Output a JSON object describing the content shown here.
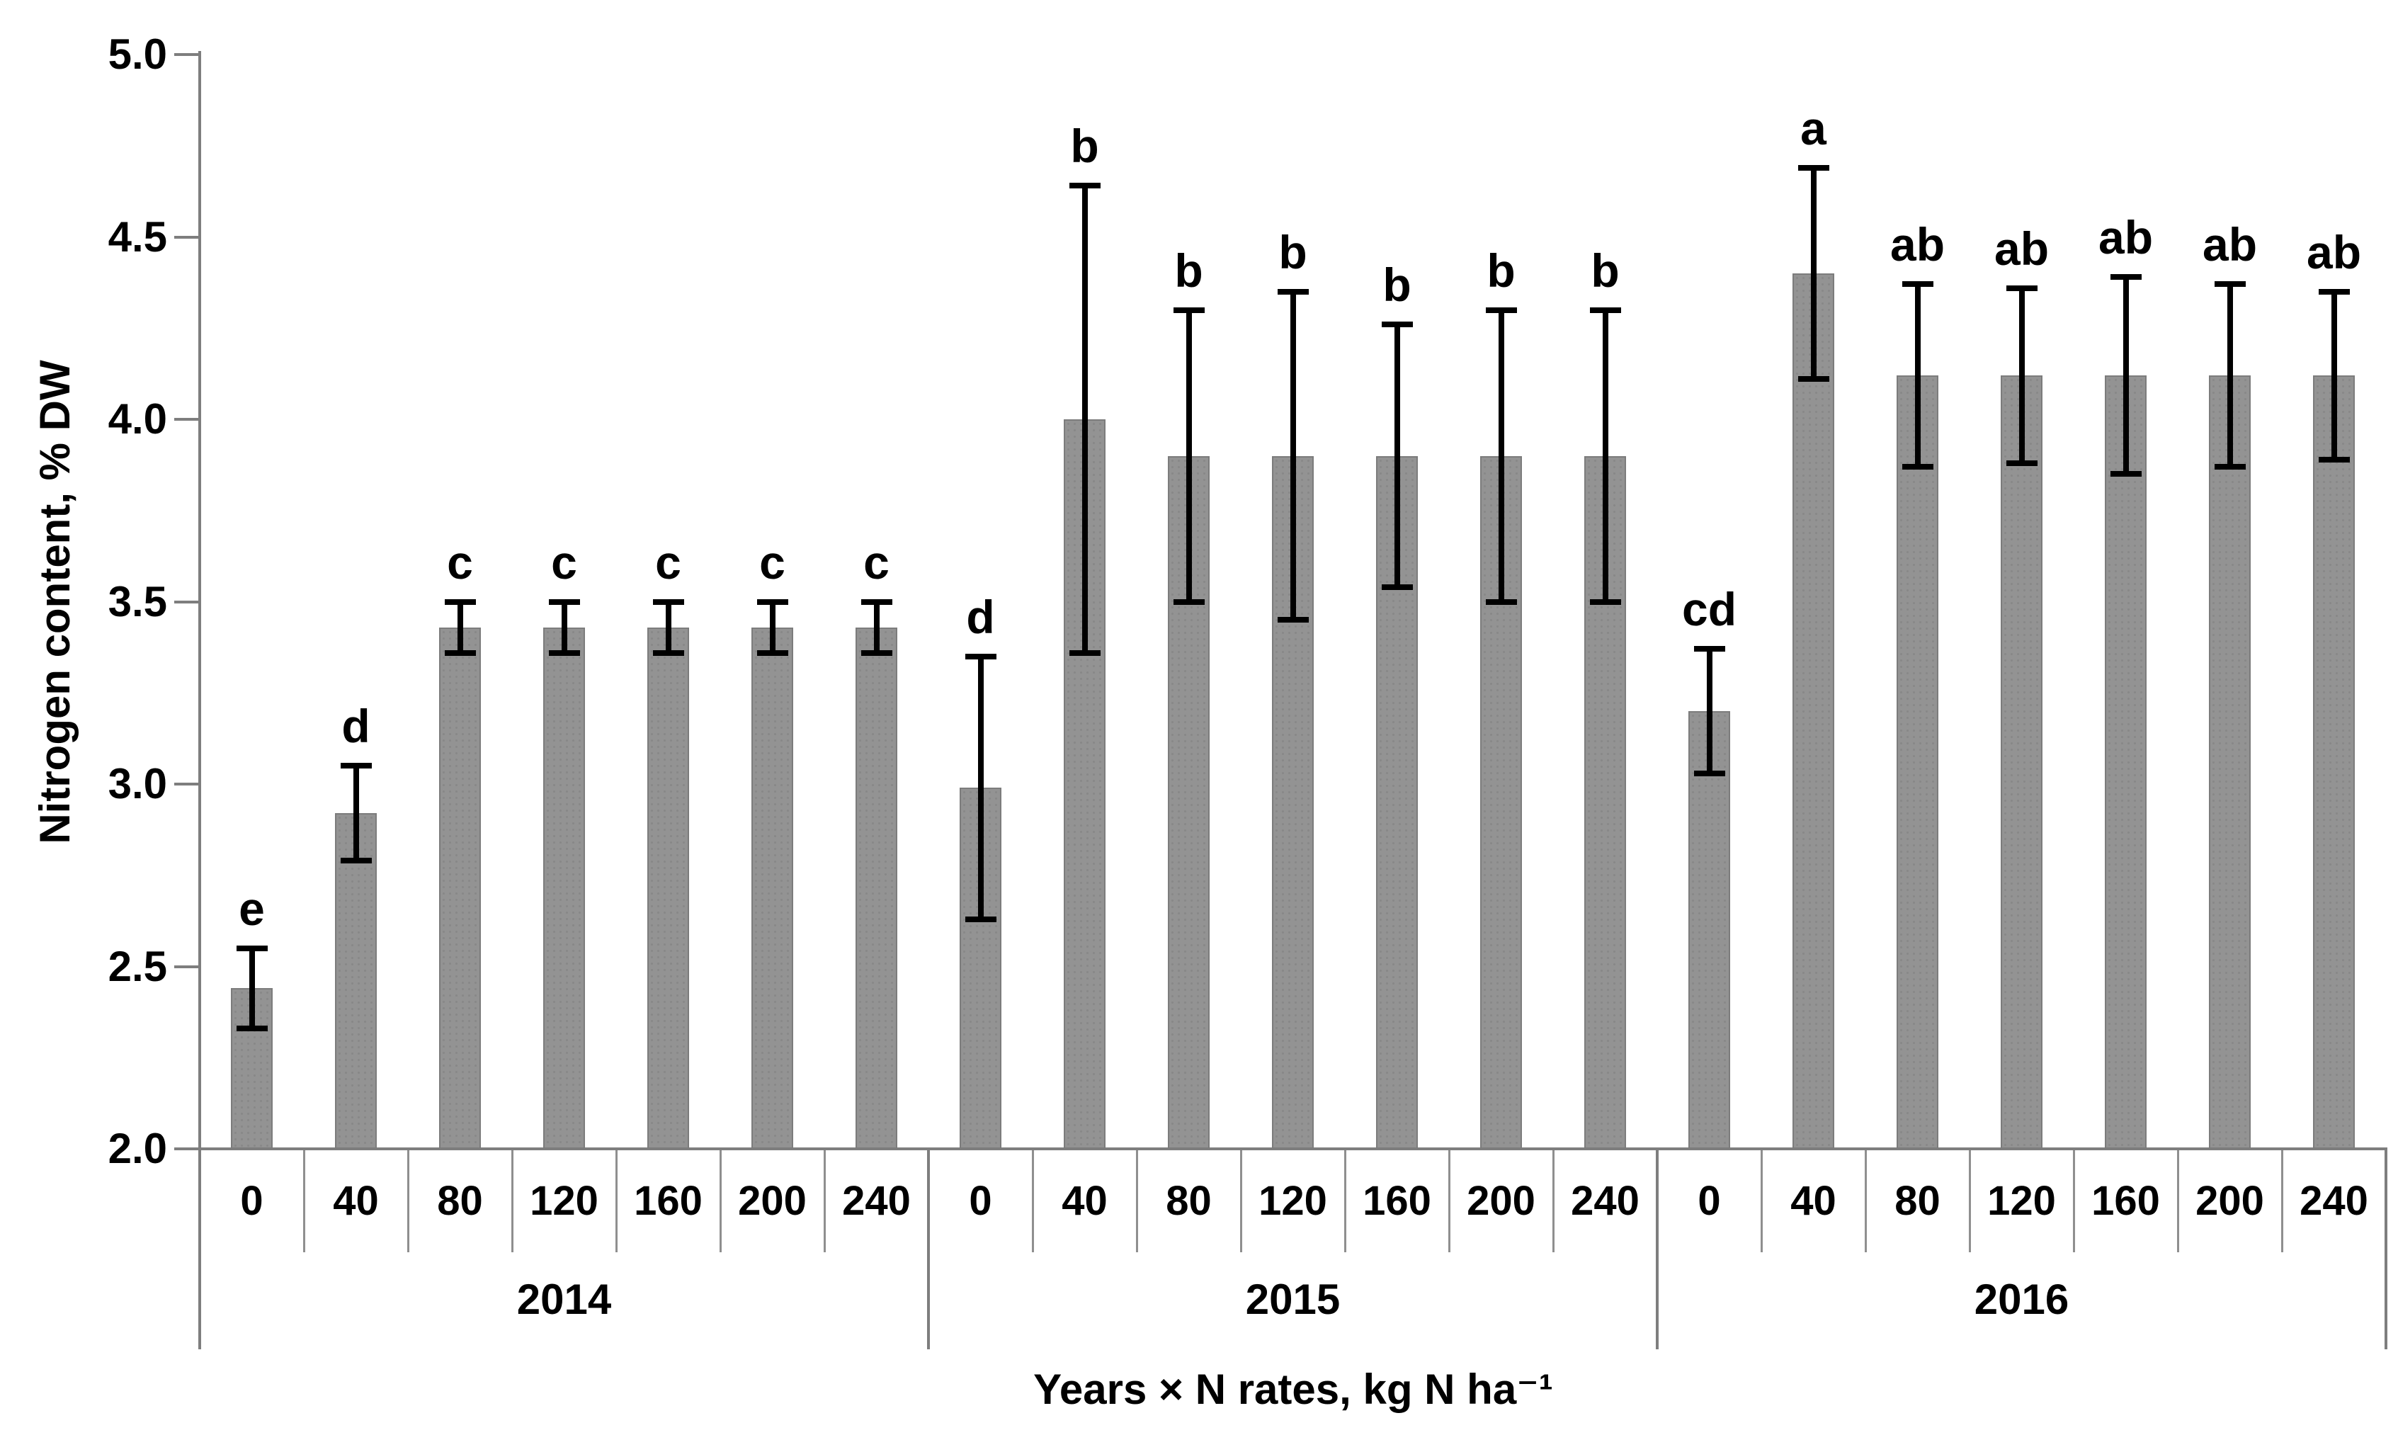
{
  "chart_data": {
    "type": "bar",
    "title": "",
    "ylabel": "Nitrogen content, % DW",
    "xlabel": "Years × N rates, kg N ha⁻¹",
    "ylim": [
      2.0,
      5.0
    ],
    "ytick_step": 0.5,
    "y_tick_labels": [
      "5.0",
      "4.5",
      "4.0",
      "3.5",
      "3.0",
      "2.5",
      "2.0"
    ],
    "grid": false,
    "legend": "none",
    "bar_color": "#939393",
    "bar_border_color": "#7c7c7c",
    "axis_color": "#7e7e7e",
    "error_bar_color": "#000000",
    "text_color": "#000000",
    "categories_per_group": [
      "0",
      "40",
      "80",
      "120",
      "160",
      "200",
      "240"
    ],
    "groups": [
      {
        "label": "2014",
        "bars": [
          {
            "rate": "0",
            "value": 2.44,
            "error": 0.11,
            "letter": "e"
          },
          {
            "rate": "40",
            "value": 2.92,
            "error": 0.13,
            "letter": "d"
          },
          {
            "rate": "80",
            "value": 3.43,
            "error": 0.07,
            "letter": "c"
          },
          {
            "rate": "120",
            "value": 3.43,
            "error": 0.07,
            "letter": "c"
          },
          {
            "rate": "160",
            "value": 3.43,
            "error": 0.07,
            "letter": "c"
          },
          {
            "rate": "200",
            "value": 3.43,
            "error": 0.07,
            "letter": "c"
          },
          {
            "rate": "240",
            "value": 3.43,
            "error": 0.07,
            "letter": "c"
          }
        ]
      },
      {
        "label": "2015",
        "bars": [
          {
            "rate": "0",
            "value": 2.99,
            "error": 0.36,
            "letter": "d"
          },
          {
            "rate": "40",
            "value": 4.0,
            "error": 0.64,
            "letter": "b"
          },
          {
            "rate": "80",
            "value": 3.9,
            "error": 0.4,
            "letter": "b"
          },
          {
            "rate": "120",
            "value": 3.9,
            "error": 0.45,
            "letter": "b"
          },
          {
            "rate": "160",
            "value": 3.9,
            "error": 0.36,
            "letter": "b"
          },
          {
            "rate": "200",
            "value": 3.9,
            "error": 0.4,
            "letter": "b"
          },
          {
            "rate": "240",
            "value": 3.9,
            "error": 0.4,
            "letter": "b"
          }
        ]
      },
      {
        "label": "2016",
        "bars": [
          {
            "rate": "0",
            "value": 3.2,
            "error": 0.17,
            "letter": "cd"
          },
          {
            "rate": "40",
            "value": 4.4,
            "error": 0.29,
            "letter": "a"
          },
          {
            "rate": "80",
            "value": 4.12,
            "error": 0.25,
            "letter": "ab"
          },
          {
            "rate": "120",
            "value": 4.12,
            "error": 0.24,
            "letter": "ab"
          },
          {
            "rate": "160",
            "value": 4.12,
            "error": 0.27,
            "letter": "ab"
          },
          {
            "rate": "200",
            "value": 4.12,
            "error": 0.25,
            "letter": "ab"
          },
          {
            "rate": "240",
            "value": 4.12,
            "error": 0.23,
            "letter": "ab"
          }
        ]
      }
    ]
  }
}
